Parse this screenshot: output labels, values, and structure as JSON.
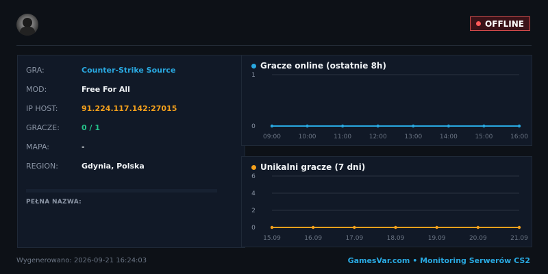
{
  "header": {
    "avatar_icon": "player-avatar-icon",
    "status_label": "OFFLINE",
    "status_color": "#ff5a5a"
  },
  "info": {
    "rows": [
      {
        "key": "GRA:",
        "value": "Counter-Strike Source"
      },
      {
        "key": "MOD:",
        "value": "Free For All"
      },
      {
        "key": "IP HOST:",
        "value": "91.224.117.142:27015"
      },
      {
        "key": "GRACZE:",
        "value": "0 / 1"
      },
      {
        "key": "MAPA:",
        "value": "-"
      },
      {
        "key": "REGION:",
        "value": "Gdynia, Polska"
      }
    ],
    "full_name_label": "PEŁNA NAZWA:"
  },
  "chart_data": [
    {
      "type": "line",
      "title": "Gracze online (ostatnie 8h)",
      "color": "#29a8e0",
      "categories": [
        "09:00",
        "10:00",
        "11:00",
        "12:00",
        "13:00",
        "14:00",
        "15:00",
        "16:00"
      ],
      "values": [
        0,
        0,
        0,
        0,
        0,
        0,
        0,
        0
      ],
      "y_ticks": [
        "0",
        "1"
      ],
      "ylim": [
        0,
        1
      ],
      "grid": true
    },
    {
      "type": "line",
      "title": "Unikalni gracze (7 dni)",
      "color": "#f4a01c",
      "categories": [
        "15.09",
        "16.09",
        "17.09",
        "18.09",
        "19.09",
        "20.09",
        "21.09"
      ],
      "values": [
        0,
        0,
        0,
        0,
        0,
        0,
        0
      ],
      "y_ticks": [
        "0",
        "2",
        "4",
        "6"
      ],
      "ylim": [
        0,
        6
      ],
      "grid": true
    }
  ],
  "footer": {
    "generated": "Wygenerowano: 2026-09-21 16:24:03",
    "brand": "GamesVar.com • Monitoring Serwerów CS2"
  }
}
